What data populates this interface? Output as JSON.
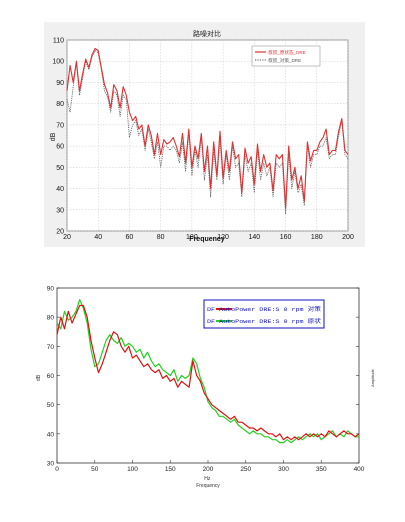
{
  "chart_data": [
    {
      "type": "line",
      "title": "路噪对比",
      "xlabel": "Frequency",
      "ylabel": "dB",
      "xlim": [
        20,
        200
      ],
      "ylim": [
        20,
        110
      ],
      "xticks": [
        "20",
        "40",
        "60",
        "80",
        "100",
        "120",
        "140",
        "160",
        "180",
        "200"
      ],
      "yticks": [
        "20",
        "30",
        "40",
        "50",
        "60",
        "70",
        "80",
        "90",
        "100",
        "110"
      ],
      "grid": true,
      "legend_position": "top-right",
      "series": [
        {
          "name": "叔叔_原状态_DRE",
          "color": "#e03030",
          "style": "solid",
          "x": [
            20,
            22,
            24,
            26,
            28,
            30,
            32,
            34,
            36,
            38,
            40,
            42,
            44,
            46,
            48,
            50,
            52,
            54,
            56,
            58,
            60,
            62,
            64,
            66,
            68,
            70,
            72,
            74,
            76,
            78,
            80,
            82,
            84,
            86,
            88,
            90,
            92,
            94,
            96,
            98,
            100,
            102,
            104,
            106,
            108,
            110,
            112,
            114,
            116,
            118,
            120,
            122,
            124,
            126,
            128,
            130,
            132,
            134,
            136,
            138,
            140,
            142,
            144,
            146,
            148,
            150,
            152,
            154,
            156,
            158,
            160,
            162,
            164,
            166,
            168,
            170,
            172,
            174,
            176,
            178,
            180,
            182,
            184,
            186,
            188,
            190,
            192,
            194,
            196,
            198,
            200
          ],
          "y": [
            86,
            98,
            90,
            100,
            86,
            94,
            101,
            97,
            103,
            106,
            105,
            97,
            89,
            85,
            78,
            89,
            86,
            78,
            88,
            84,
            76,
            72,
            74,
            68,
            70,
            60,
            70,
            65,
            56,
            66,
            56,
            63,
            61,
            62,
            64,
            60,
            55,
            66,
            52,
            68,
            50,
            60,
            54,
            66,
            48,
            60,
            40,
            62,
            46,
            67,
            45,
            58,
            48,
            62,
            54,
            56,
            38,
            59,
            52,
            55,
            42,
            61,
            48,
            56,
            50,
            52,
            39,
            56,
            54,
            56,
            31,
            60,
            44,
            50,
            40,
            46,
            34,
            62,
            53,
            58,
            58,
            62,
            64,
            68,
            56,
            58,
            58,
            67,
            73,
            58,
            56
          ]
        },
        {
          "name": "叔叔_对策_DRE",
          "color": "#555555",
          "style": "dotted",
          "x": [
            20,
            22,
            24,
            26,
            28,
            30,
            32,
            34,
            36,
            38,
            40,
            42,
            44,
            46,
            48,
            50,
            52,
            54,
            56,
            58,
            60,
            62,
            64,
            66,
            68,
            70,
            72,
            74,
            76,
            78,
            80,
            82,
            84,
            86,
            88,
            90,
            92,
            94,
            96,
            98,
            100,
            102,
            104,
            106,
            108,
            110,
            112,
            114,
            116,
            118,
            120,
            122,
            124,
            126,
            128,
            130,
            132,
            134,
            136,
            138,
            140,
            142,
            144,
            146,
            148,
            150,
            152,
            154,
            156,
            158,
            160,
            162,
            164,
            166,
            168,
            170,
            172,
            174,
            176,
            178,
            180,
            182,
            184,
            186,
            188,
            190,
            192,
            194,
            196,
            198,
            200
          ],
          "y": [
            82,
            76,
            88,
            99,
            84,
            92,
            100,
            96,
            102,
            105,
            104,
            96,
            86,
            83,
            76,
            86,
            84,
            74,
            84,
            82,
            64,
            70,
            72,
            65,
            68,
            58,
            68,
            62,
            54,
            62,
            50,
            60,
            60,
            58,
            60,
            58,
            52,
            62,
            48,
            66,
            46,
            58,
            50,
            64,
            44,
            56,
            36,
            58,
            44,
            63,
            42,
            56,
            44,
            60,
            50,
            52,
            36,
            56,
            48,
            52,
            38,
            58,
            44,
            52,
            46,
            50,
            36,
            52,
            50,
            52,
            28,
            56,
            40,
            48,
            38,
            42,
            32,
            60,
            50,
            56,
            56,
            60,
            60,
            64,
            54,
            56,
            56,
            65,
            72,
            56,
            54
          ]
        }
      ]
    },
    {
      "type": "line",
      "title": "",
      "xlabel": "Hz\nFrequency",
      "ylabel": "dB",
      "xlim": [
        0,
        400
      ],
      "ylim": [
        30,
        90
      ],
      "xticks": [
        "0",
        "50",
        "100",
        "150",
        "200",
        "250",
        "300",
        "350",
        "400"
      ],
      "yticks": [
        "30",
        "40",
        "50",
        "60",
        "70",
        "80",
        "90"
      ],
      "right_axis_label": "Amplitude",
      "grid": false,
      "legend_position": "top-right",
      "series": [
        {
          "name": "DF AutoPower DRE:S 0 rpm 对策",
          "color": "#e01010",
          "style": "solid",
          "x": [
            0,
            5,
            10,
            15,
            20,
            25,
            30,
            35,
            40,
            45,
            50,
            55,
            60,
            65,
            70,
            75,
            80,
            85,
            90,
            95,
            100,
            105,
            110,
            115,
            120,
            125,
            130,
            135,
            140,
            145,
            150,
            155,
            160,
            165,
            170,
            175,
            180,
            185,
            190,
            195,
            200,
            205,
            210,
            215,
            220,
            225,
            230,
            235,
            240,
            245,
            250,
            255,
            260,
            265,
            270,
            275,
            280,
            285,
            290,
            295,
            300,
            305,
            310,
            315,
            320,
            325,
            330,
            335,
            340,
            345,
            350,
            355,
            360,
            365,
            370,
            375,
            380,
            385,
            390,
            395,
            400
          ],
          "y": [
            74,
            80,
            76,
            82,
            78,
            81,
            84,
            84,
            80,
            72,
            66,
            61,
            64,
            68,
            72,
            75,
            74,
            70,
            68,
            70,
            66,
            67,
            65,
            63,
            64,
            62,
            61,
            62,
            59,
            60,
            58,
            59,
            56,
            58,
            57,
            56,
            65,
            60,
            58,
            54,
            52,
            50,
            49,
            48,
            47,
            46,
            45,
            46,
            44,
            44,
            43,
            42,
            42,
            41,
            42,
            41,
            40,
            40,
            39,
            40,
            38,
            39,
            38,
            39,
            38,
            39,
            40,
            39,
            40,
            39,
            40,
            39,
            41,
            40,
            39,
            40,
            41,
            40,
            40,
            39,
            40
          ]
        },
        {
          "name": "DF AutoPower DRE:S 0 rpm 原状",
          "color": "#20d020",
          "style": "solid",
          "x": [
            0,
            5,
            10,
            15,
            20,
            25,
            30,
            35,
            40,
            45,
            50,
            55,
            60,
            65,
            70,
            75,
            80,
            85,
            90,
            95,
            100,
            105,
            110,
            115,
            120,
            125,
            130,
            135,
            140,
            145,
            150,
            155,
            160,
            165,
            170,
            175,
            180,
            185,
            190,
            195,
            200,
            205,
            210,
            215,
            220,
            225,
            230,
            235,
            240,
            245,
            250,
            255,
            260,
            265,
            270,
            275,
            280,
            285,
            290,
            295,
            300,
            305,
            310,
            315,
            320,
            325,
            330,
            335,
            340,
            345,
            350,
            355,
            360,
            365,
            370,
            375,
            380,
            385,
            390,
            395,
            400
          ],
          "y": [
            78,
            76,
            82,
            79,
            80,
            82,
            86,
            83,
            78,
            69,
            63,
            64,
            68,
            72,
            74,
            72,
            71,
            73,
            70,
            71,
            70,
            68,
            69,
            66,
            68,
            65,
            63,
            64,
            62,
            61,
            60,
            62,
            58,
            60,
            59,
            60,
            66,
            64,
            59,
            56,
            51,
            49,
            48,
            46,
            46,
            45,
            44,
            45,
            43,
            42,
            41,
            40,
            41,
            40,
            40,
            39,
            39,
            38,
            38,
            37,
            37,
            38,
            37,
            38,
            39,
            38,
            39,
            40,
            39,
            40,
            38,
            39,
            40,
            41,
            39,
            40,
            39,
            41,
            40,
            39,
            39
          ]
        }
      ]
    }
  ]
}
